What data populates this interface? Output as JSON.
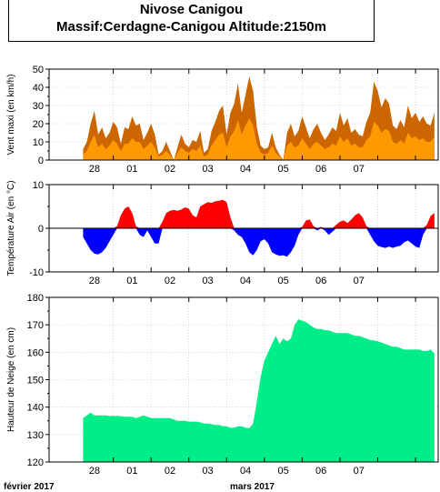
{
  "header": {
    "line1": "Nivose Canigou",
    "line2": "Massif:Cerdagne-Canigou Altitude:2150m"
  },
  "x_axis": {
    "day_labels": [
      "28",
      "01",
      "02",
      "03",
      "04",
      "05",
      "06",
      "07"
    ],
    "month_labels": [
      "février 2017",
      "mars 2017"
    ]
  },
  "chart_data": [
    {
      "type": "area",
      "ylabel": "Vent maxi (en km/h)",
      "ylim": [
        0,
        50
      ],
      "yticks": [
        0,
        10,
        20,
        30,
        40,
        50
      ],
      "grid": true,
      "x_unit": "days since 27 Feb 00h",
      "series": [
        {
          "color": "#cc6600",
          "x": [
            0,
            0.1,
            0.2,
            0.3,
            0.4,
            0.5,
            0.6,
            0.7,
            0.8,
            0.9,
            1.0,
            1.1,
            1.2,
            1.3,
            1.4,
            1.5,
            1.6,
            1.7,
            1.8,
            1.9,
            2.0,
            2.1,
            2.2,
            2.3,
            2.4,
            2.5,
            2.6,
            2.7,
            2.8,
            2.9,
            3.0,
            3.1,
            3.2,
            3.3,
            3.4,
            3.5,
            3.6,
            3.7,
            3.8,
            3.9,
            4.0,
            4.1,
            4.2,
            4.3,
            4.4,
            4.5,
            4.6,
            4.7,
            4.8,
            4.9,
            5.0,
            5.1,
            5.2,
            5.3,
            5.4,
            5.5,
            5.6,
            5.7,
            5.8,
            5.9,
            6.0,
            6.1,
            6.2,
            6.3,
            6.4,
            6.5,
            6.6,
            6.7,
            6.8,
            6.9,
            7.0,
            7.1,
            7.2,
            7.3,
            7.4,
            7.5,
            7.6,
            7.7,
            7.8,
            7.9,
            8.0,
            8.1,
            8.2,
            8.3,
            8.4,
            8.5,
            8.6,
            8.7,
            8.8,
            8.9,
            9.0,
            9.1,
            9.2,
            9.3
          ],
          "values": [
            6,
            10,
            20,
            27,
            14,
            18,
            12,
            15,
            21,
            18,
            9,
            18,
            17,
            24,
            19,
            20,
            11,
            15,
            20,
            14,
            3,
            5,
            10,
            5,
            0,
            7,
            14,
            9,
            7,
            11,
            10,
            16,
            4,
            6,
            16,
            21,
            27,
            30,
            14,
            26,
            31,
            42,
            26,
            36,
            46,
            38,
            18,
            8,
            6,
            7,
            15,
            7,
            3,
            0,
            15,
            20,
            13,
            16,
            24,
            18,
            12,
            17,
            20,
            15,
            11,
            14,
            18,
            16,
            26,
            19,
            23,
            15,
            17,
            14,
            13,
            21,
            26,
            43,
            38,
            29,
            34,
            31,
            19,
            17,
            22,
            18,
            30,
            23,
            26,
            21,
            24,
            20,
            19,
            26
          ]
        },
        {
          "color": "#ff9900",
          "x": [
            0,
            0.1,
            0.2,
            0.3,
            0.4,
            0.5,
            0.6,
            0.7,
            0.8,
            0.9,
            1.0,
            1.1,
            1.2,
            1.3,
            1.4,
            1.5,
            1.6,
            1.7,
            1.8,
            1.9,
            2.0,
            2.1,
            2.2,
            2.3,
            2.4,
            2.5,
            2.6,
            2.7,
            2.8,
            2.9,
            3.0,
            3.1,
            3.2,
            3.3,
            3.4,
            3.5,
            3.6,
            3.7,
            3.8,
            3.9,
            4.0,
            4.1,
            4.2,
            4.3,
            4.4,
            4.5,
            4.6,
            4.7,
            4.8,
            4.9,
            5.0,
            5.1,
            5.2,
            5.3,
            5.4,
            5.5,
            5.6,
            5.7,
            5.8,
            5.9,
            6.0,
            6.1,
            6.2,
            6.3,
            6.4,
            6.5,
            6.6,
            6.7,
            6.8,
            6.9,
            7.0,
            7.1,
            7.2,
            7.3,
            7.4,
            7.5,
            7.6,
            7.7,
            7.8,
            7.9,
            8.0,
            8.1,
            8.2,
            8.3,
            8.4,
            8.5,
            8.6,
            8.7,
            8.8,
            8.9,
            9.0,
            9.1,
            9.2,
            9.3
          ],
          "values": [
            3,
            5,
            10,
            14,
            7,
            9,
            6,
            8,
            11,
            9,
            5,
            9,
            9,
            12,
            10,
            10,
            6,
            8,
            10,
            7,
            2,
            3,
            5,
            3,
            0,
            4,
            7,
            5,
            4,
            6,
            5,
            8,
            2,
            3,
            8,
            11,
            14,
            15,
            7,
            13,
            16,
            22,
            14,
            19,
            23,
            19,
            9,
            4,
            3,
            4,
            8,
            4,
            2,
            0,
            8,
            10,
            7,
            8,
            12,
            9,
            6,
            9,
            10,
            8,
            6,
            7,
            9,
            8,
            13,
            10,
            12,
            8,
            9,
            7,
            7,
            11,
            13,
            21,
            19,
            15,
            17,
            16,
            10,
            9,
            11,
            9,
            15,
            12,
            13,
            11,
            12,
            10,
            10,
            13
          ]
        }
      ]
    },
    {
      "type": "area",
      "ylabel": "Température Air (en °C)",
      "ylim": [
        -10,
        10
      ],
      "yticks": [
        -10,
        0,
        10
      ],
      "grid": true,
      "positive_color": "#ff0000",
      "negative_color": "#0000ff",
      "x": [
        0,
        0.1,
        0.2,
        0.3,
        0.4,
        0.5,
        0.6,
        0.7,
        0.8,
        0.9,
        1.0,
        1.1,
        1.2,
        1.3,
        1.4,
        1.5,
        1.6,
        1.7,
        1.8,
        1.9,
        2.0,
        2.1,
        2.2,
        2.3,
        2.4,
        2.5,
        2.6,
        2.7,
        2.8,
        2.9,
        3.0,
        3.1,
        3.2,
        3.3,
        3.4,
        3.5,
        3.6,
        3.7,
        3.8,
        3.9,
        4.0,
        4.1,
        4.2,
        4.3,
        4.4,
        4.5,
        4.6,
        4.7,
        4.8,
        4.9,
        5.0,
        5.1,
        5.2,
        5.3,
        5.4,
        5.5,
        5.6,
        5.7,
        5.8,
        5.9,
        6.0,
        6.1,
        6.2,
        6.3,
        6.4,
        6.5,
        6.6,
        6.7,
        6.8,
        6.9,
        7.0,
        7.1,
        7.2,
        7.3,
        7.4,
        7.5,
        7.6,
        7.7,
        7.8,
        7.9,
        8.0,
        8.1,
        8.2,
        8.3,
        8.4,
        8.5,
        8.6,
        8.7,
        8.8,
        8.9,
        9.0,
        9.1,
        9.2,
        9.3
      ],
      "values": [
        -2,
        -3.5,
        -5,
        -5.8,
        -6,
        -5.5,
        -4.5,
        -3,
        -1.5,
        0.5,
        3,
        4.5,
        5,
        3.5,
        0.5,
        -1.5,
        -2,
        -0.5,
        -2,
        -3.5,
        -3.5,
        1.5,
        3.5,
        4,
        4.2,
        4,
        4.3,
        4.8,
        4.5,
        3,
        2.5,
        5,
        5.5,
        6,
        5.8,
        6.2,
        6.3,
        6.5,
        6,
        2.5,
        -0.5,
        -1.5,
        -2,
        -3.5,
        -5.5,
        -6.2,
        -5,
        -3,
        -2.5,
        -3.5,
        -5.5,
        -6,
        -6.3,
        -6.2,
        -6.5,
        -5.5,
        -4,
        -1.5,
        0.3,
        1.8,
        2,
        0.5,
        -0.5,
        0.3,
        -0.5,
        -1.5,
        -0.8,
        0.8,
        1.5,
        1.8,
        1.2,
        2,
        3,
        3.5,
        2.5,
        0.5,
        -1.5,
        -3,
        -4,
        -4.3,
        -4.5,
        -4.2,
        -4.5,
        -4.2,
        -4,
        -3.2,
        -2.8,
        -3.5,
        -4.2,
        -4.5,
        -1.5,
        0.8,
        2.8,
        3.5
      ]
    },
    {
      "type": "area",
      "ylabel": "Hauteur de Neige (en cm)",
      "ylim": [
        120,
        180
      ],
      "yticks": [
        120,
        130,
        140,
        150,
        160,
        170,
        180
      ],
      "grid": true,
      "color": "#00ee88",
      "x": [
        0,
        0.1,
        0.2,
        0.3,
        0.4,
        0.5,
        0.6,
        0.7,
        0.8,
        0.9,
        1.0,
        1.1,
        1.2,
        1.3,
        1.4,
        1.5,
        1.6,
        1.7,
        1.8,
        1.9,
        2.0,
        2.1,
        2.2,
        2.3,
        2.4,
        2.5,
        2.6,
        2.7,
        2.8,
        2.9,
        3.0,
        3.1,
        3.2,
        3.3,
        3.4,
        3.5,
        3.6,
        3.7,
        3.8,
        3.9,
        4.0,
        4.1,
        4.2,
        4.3,
        4.4,
        4.5,
        4.6,
        4.7,
        4.8,
        4.9,
        5.0,
        5.1,
        5.2,
        5.3,
        5.4,
        5.5,
        5.6,
        5.7,
        5.8,
        5.9,
        6.0,
        6.1,
        6.2,
        6.3,
        6.4,
        6.5,
        6.6,
        6.7,
        6.8,
        6.9,
        7.0,
        7.1,
        7.2,
        7.3,
        7.4,
        7.5,
        7.6,
        7.7,
        7.8,
        7.9,
        8.0,
        8.1,
        8.2,
        8.3,
        8.4,
        8.5,
        8.6,
        8.7,
        8.8,
        8.9,
        9.0,
        9.1,
        9.2,
        9.3
      ],
      "values": [
        136,
        137,
        138,
        137,
        137,
        137,
        137,
        136.8,
        136.8,
        136.8,
        136.7,
        136.5,
        136.5,
        136.5,
        136,
        136.5,
        137,
        136.5,
        136,
        136,
        136,
        136,
        136,
        136,
        135.5,
        135,
        135,
        135,
        134.7,
        134.7,
        134.7,
        134.5,
        134,
        134,
        133.8,
        133.5,
        133.5,
        133,
        133,
        132.5,
        132.5,
        133,
        133,
        132.5,
        132.3,
        134,
        142,
        151,
        157,
        160,
        163,
        166,
        163,
        165,
        164,
        165,
        170,
        172,
        171.5,
        171,
        170,
        169,
        168.5,
        168.5,
        168,
        168,
        167.5,
        167,
        167,
        167,
        167,
        166.5,
        166,
        166,
        165.5,
        165,
        164.5,
        164.3,
        164,
        163.5,
        163,
        162.5,
        162,
        162,
        161.5,
        161,
        161,
        161,
        161,
        161,
        160.5,
        160.5,
        161,
        159.5
      ]
    }
  ]
}
